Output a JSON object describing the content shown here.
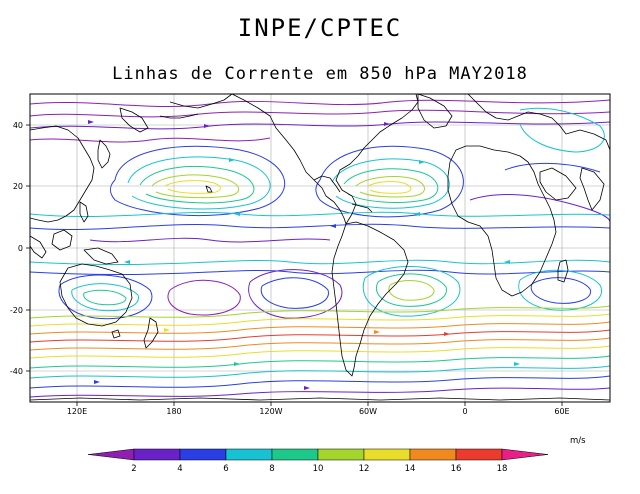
{
  "header": {
    "org": "INPE/CPTEC",
    "title": "Linhas de Corrente em 850 hPa MAY2018"
  },
  "map": {
    "lat_ticks": [
      "40",
      "20",
      "0",
      "-20",
      "-40"
    ],
    "lon_ticks": [
      "120E",
      "180",
      "120W",
      "60W",
      "0",
      "60E"
    ]
  },
  "colorbar": {
    "unit": "m/s",
    "labels": [
      "2",
      "4",
      "6",
      "8",
      "10",
      "12",
      "14",
      "16",
      "18"
    ],
    "colors": [
      "#8f1fb1",
      "#6a21c8",
      "#2a3ee6",
      "#17c3d2",
      "#1dc98a",
      "#a3d52c",
      "#e8de2a",
      "#f08a1f",
      "#ea3b2d",
      "#e91e86"
    ]
  },
  "legend_colors": {
    "speed_2": "#8f1fb1",
    "speed_6": "#2a3ee6",
    "speed_8": "#17c3d2",
    "speed_10": "#1dc98a",
    "speed_12": "#a3d52c",
    "speed_14": "#e8de2a",
    "speed_16": "#f08a1f",
    "speed_18": "#ea3b2d"
  }
}
